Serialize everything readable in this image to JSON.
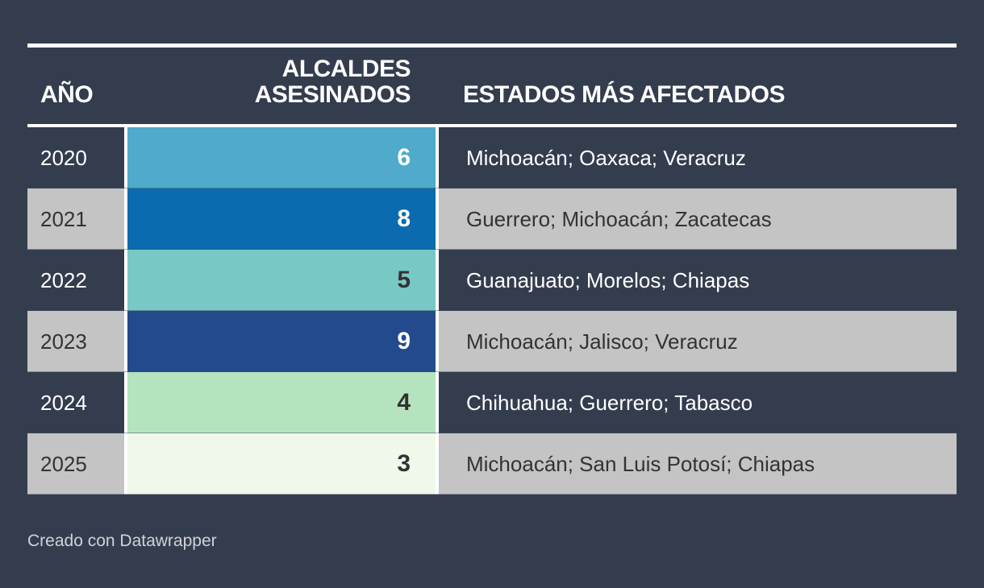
{
  "colors": {
    "background": "#333d4e",
    "shaded_row": "#c4c4c4",
    "text_on_dark": "#ffffff",
    "text_on_light": "#333333"
  },
  "header": {
    "year": "AÑO",
    "count_line1": "ALCALDES",
    "count_line2": "ASESINADOS",
    "states": "ESTADOS MÁS AFECTADOS"
  },
  "rows": [
    {
      "year": "2020",
      "count": "6",
      "states": "Michoacán; Oaxaca; Veracruz",
      "bar_color": "#4faacb",
      "count_color": "#ffffff",
      "shaded": false
    },
    {
      "year": "2021",
      "count": "8",
      "states": "Guerrero; Michoacán; Zacatecas",
      "bar_color": "#0c6aae",
      "count_color": "#ffffff",
      "shaded": true
    },
    {
      "year": "2022",
      "count": "5",
      "states": "Guanajuato; Morelos; Chiapas",
      "bar_color": "#78c8c6",
      "count_color": "#333333",
      "shaded": false
    },
    {
      "year": "2023",
      "count": "9",
      "states": "Michoacán; Jalisco; Veracruz",
      "bar_color": "#224a8c",
      "count_color": "#ffffff",
      "shaded": true
    },
    {
      "year": "2024",
      "count": "4",
      "states": "Chihuahua; Guerrero; Tabasco",
      "bar_color": "#b5e3bd",
      "count_color": "#333333",
      "shaded": false
    },
    {
      "year": "2025",
      "count": "3",
      "states": "Michoacán; San Luis Potosí; Chiapas",
      "bar_color": "#f0f8ea",
      "count_color": "#333333",
      "shaded": true
    }
  ],
  "footer": {
    "credit": "Creado con Datawrapper"
  },
  "chart_data": {
    "type": "table",
    "columns": [
      "AÑO",
      "ALCALDES ASESINADOS",
      "ESTADOS MÁS AFECTADOS"
    ],
    "categories": [
      "2020",
      "2021",
      "2022",
      "2023",
      "2024",
      "2025"
    ],
    "values": [
      6,
      8,
      5,
      9,
      4,
      3
    ],
    "states": [
      "Michoacán; Oaxaca; Veracruz",
      "Guerrero; Michoacán; Zacatecas",
      "Guanajuato; Morelos; Chiapas",
      "Michoacán; Jalisco; Veracruz",
      "Chihuahua; Guerrero; Tabasco",
      "Michoacán; San Luis Potosí; Chiapas"
    ]
  }
}
